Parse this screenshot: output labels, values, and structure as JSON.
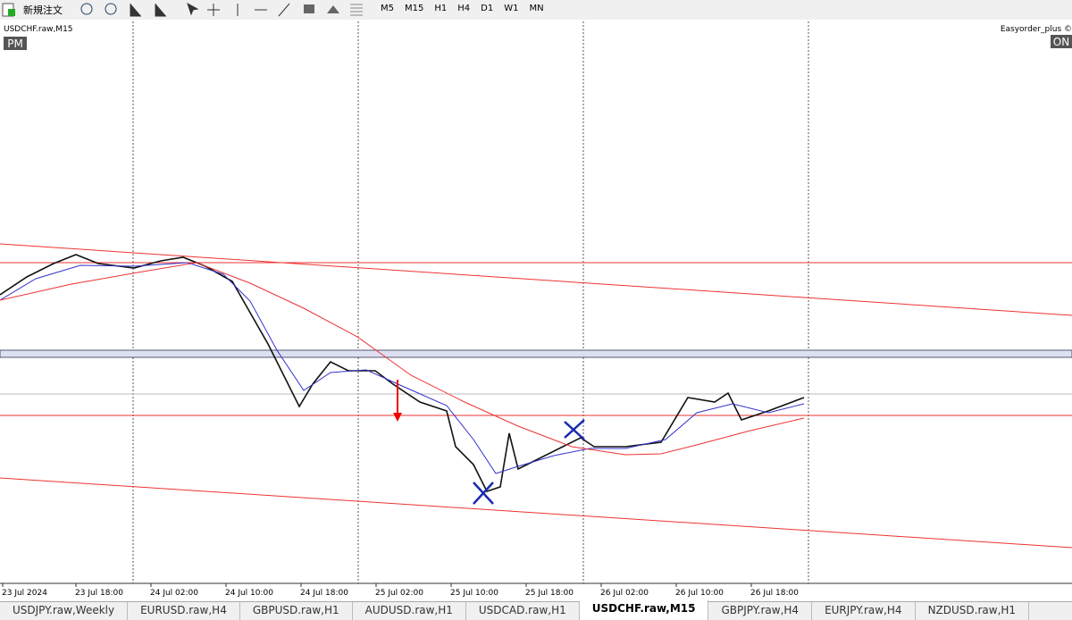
{
  "toolbar": {
    "new_order": "新規注文",
    "timeframes": [
      "M5",
      "M15",
      "H1",
      "H4",
      "D1",
      "W1",
      "MN"
    ]
  },
  "chart": {
    "symbol": "USDCHF.raw,M15",
    "session": "PM",
    "ea_name": "Easyorder_plus ©",
    "ea_status": "ON",
    "time_labels": [
      "23 Jul 2024",
      "23 Jul 18:00",
      "24 Jul 02:00",
      "24 Jul 10:00",
      "24 Jul 18:00",
      "25 Jul 02:00",
      "25 Jul 10:00",
      "25 Jul 18:00",
      "26 Jul 02:00",
      "26 Jul 10:00",
      "26 Jul 18:00"
    ]
  },
  "tabs": [
    "USDJPY.raw,Weekly",
    "EURUSD.raw,H4",
    "GBPUSD.raw,H1",
    "AUDUSD.raw,H1",
    "USDCAD.raw,H1",
    "USDCHF.raw,M15",
    "GBPJPY.raw,H4",
    "EURJPY.raw,H4",
    "NZDUSD.raw,H1"
  ]
}
